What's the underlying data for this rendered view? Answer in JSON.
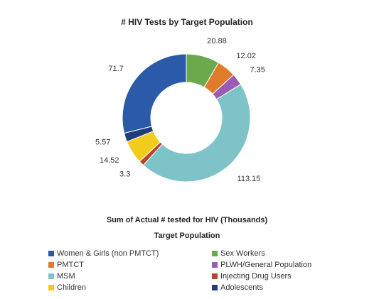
{
  "chart_data": {
    "type": "donut",
    "title": "# HIV Tests by Target Population",
    "x_label": "Sum of Actual # tested for HIV (Thousands)",
    "legend_title": "Target Population",
    "categories": [
      "Women & Girls (non PMTCT)",
      "Sex Workers",
      "PMTCT",
      "PLWH/General Population",
      "MSM",
      "Injecting Drug Users",
      "Children",
      "Adolescents"
    ],
    "values": [
      71.7,
      20.88,
      12.02,
      7.35,
      113.15,
      3.3,
      14.52,
      5.57
    ],
    "value_labels": [
      "71.7",
      "20.88",
      "12.02",
      "7.35",
      "113.15",
      "3.3",
      "14.52",
      "5.57"
    ],
    "colors": [
      "#2b5aa8",
      "#6aaa4c",
      "#e07b2c",
      "#9a5bb5",
      "#7ec3c7",
      "#b5462a",
      "#f2cc1c",
      "#1f3d7a"
    ]
  }
}
